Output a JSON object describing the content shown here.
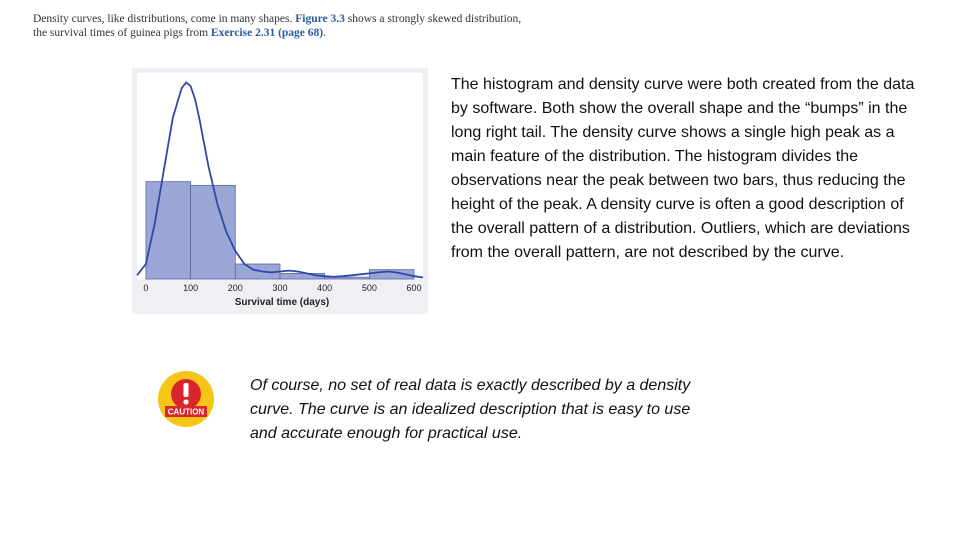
{
  "intro": {
    "part1": "Density curves, like distributions, come in many shapes. ",
    "figure_ref": "Figure 3.3",
    "part2": " shows a strongly skewed distribution, the survival times of guinea pigs from ",
    "exercise_ref": "Exercise 2.31 (page 68)",
    "part3": "."
  },
  "body_text": "The histogram and density curve were both created from the data by software. Both show the overall shape and the “bumps” in the long right tail. The density curve shows a single high peak as a main feature of the distribution. The histogram divides the observations near the peak between two bars, thus reducing the height of the peak. A density curve is often a good description of the overall pattern of a distribution. Outliers, which are deviations from the overall pattern, are not described by the curve.",
  "caution": {
    "badge_label": "CAUTION",
    "icon": "caution-icon",
    "text": "Of course, no set of real data is exactly described by a density curve. The curve is an idealized description that is easy to use and accurate enough for practical use."
  },
  "colors": {
    "bar_fill": "#9aa6d6",
    "bar_stroke": "#5d6aa8",
    "curve": "#2f4aa6",
    "figure_bg": "#eef0f5",
    "caution_yellow": "#f5c518",
    "caution_red": "#d8262b"
  },
  "chart_data": {
    "type": "bar",
    "title": "",
    "xlabel": "Survival time (days)",
    "ylabel": "",
    "x_ticks": [
      0,
      100,
      200,
      300,
      400,
      500,
      600
    ],
    "xlim": [
      -20,
      620
    ],
    "ylim": [
      0,
      1.1
    ],
    "bins": [
      {
        "start": 0,
        "end": 100,
        "value": 0.52
      },
      {
        "start": 100,
        "end": 200,
        "value": 0.5
      },
      {
        "start": 200,
        "end": 300,
        "value": 0.08
      },
      {
        "start": 300,
        "end": 400,
        "value": 0.03
      },
      {
        "start": 400,
        "end": 500,
        "value": 0.01
      },
      {
        "start": 500,
        "end": 600,
        "value": 0.05
      }
    ],
    "density_curve": {
      "x": [
        -20,
        0,
        20,
        40,
        60,
        80,
        90,
        100,
        110,
        120,
        140,
        160,
        180,
        200,
        220,
        240,
        260,
        280,
        300,
        320,
        340,
        360,
        380,
        400,
        420,
        440,
        460,
        480,
        500,
        520,
        540,
        560,
        580,
        600,
        620
      ],
      "y": [
        0.02,
        0.08,
        0.3,
        0.58,
        0.86,
        1.02,
        1.05,
        1.03,
        0.96,
        0.85,
        0.6,
        0.4,
        0.25,
        0.15,
        0.08,
        0.05,
        0.04,
        0.035,
        0.04,
        0.045,
        0.04,
        0.03,
        0.02,
        0.015,
        0.012,
        0.015,
        0.02,
        0.025,
        0.03,
        0.035,
        0.04,
        0.035,
        0.025,
        0.015,
        0.008
      ]
    },
    "grid": false,
    "legend": "none"
  }
}
